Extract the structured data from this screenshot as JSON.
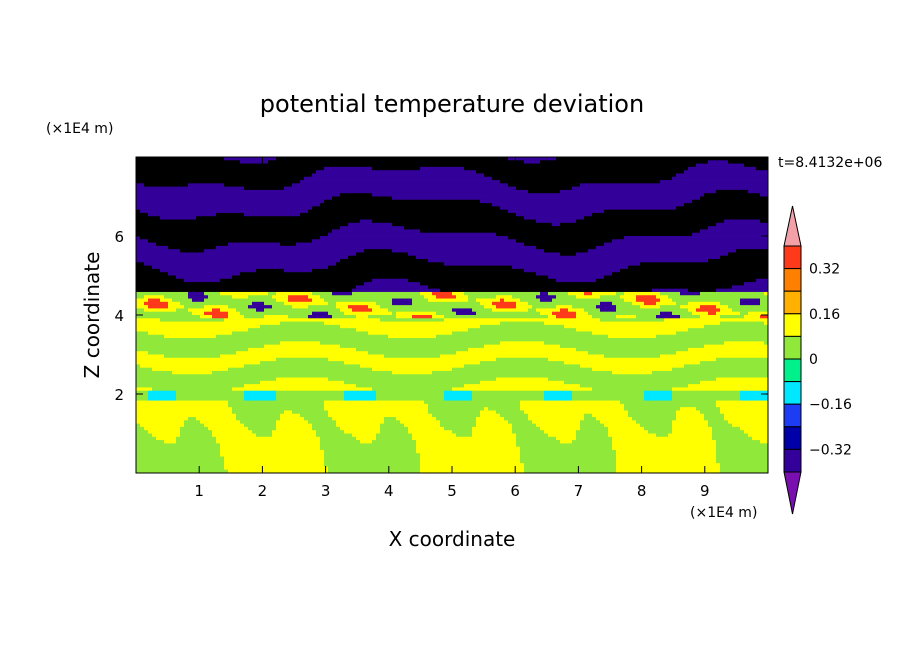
{
  "chart_data": {
    "type": "heatmap",
    "title": "potential temperature deviation",
    "xlabel": "X coordinate",
    "ylabel": "Z coordinate",
    "x_unit": "(×1E4 m)",
    "y_unit": "(×1E4 m)",
    "time_label": "t=8.4132e+06",
    "xlim": [
      0,
      10
    ],
    "ylim": [
      0,
      8
    ],
    "x_ticks": [
      1,
      2,
      3,
      4,
      5,
      6,
      7,
      8,
      9
    ],
    "y_ticks": [
      2,
      4,
      6
    ],
    "colorbar": {
      "levels": [
        -0.48,
        -0.4,
        -0.32,
        -0.24,
        -0.16,
        -0.08,
        0,
        0.08,
        0.16,
        0.24,
        0.32,
        0.4,
        0.48
      ],
      "tick_labels": [
        "0.32",
        "0.16",
        "0",
        "−0.16",
        "−0.32"
      ],
      "tick_values": [
        0.32,
        0.16,
        0,
        -0.16,
        -0.32
      ],
      "colors": [
        "#7a0fb0",
        "#330099",
        "#0000a8",
        "#1f3cf5",
        "#00e8ff",
        "#00f08c",
        "#90e83a",
        "#ffff00",
        "#ffb000",
        "#ff8000",
        "#ff3a1a",
        "#f4a0a8"
      ],
      "extend": "both"
    }
  }
}
